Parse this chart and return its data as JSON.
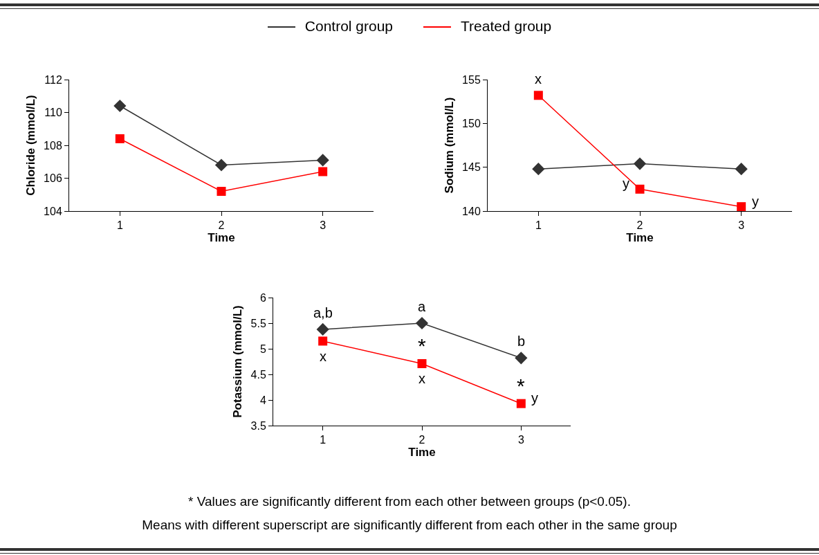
{
  "chart_data": [
    {
      "type": "line",
      "categories": [
        "1",
        "2",
        "3"
      ],
      "xlabel": "Time",
      "ylabel": "Chloride (mmol/L)",
      "ylim": [
        104,
        112
      ],
      "yticks": [
        104,
        106,
        108,
        110,
        112
      ],
      "grid": false,
      "legend": "top",
      "series": [
        {
          "name": "Control group",
          "color": "#333333",
          "marker": "diamond",
          "values": [
            110.4,
            106.8,
            107.1
          ]
        },
        {
          "name": "Treated group",
          "color": "#ff0000",
          "marker": "square",
          "values": [
            108.4,
            105.2,
            106.4
          ]
        }
      ]
    },
    {
      "type": "line",
      "categories": [
        "1",
        "2",
        "3"
      ],
      "xlabel": "Time",
      "ylabel": "Sodium (mmol/L)",
      "ylim": [
        140,
        155
      ],
      "yticks": [
        140,
        145,
        150,
        155
      ],
      "grid": false,
      "series": [
        {
          "color": "#333333",
          "marker": "diamond",
          "values": [
            144.8,
            145.4,
            144.8
          ]
        },
        {
          "color": "#ff0000",
          "marker": "square",
          "values": [
            153.2,
            142.5,
            140.5
          ]
        }
      ],
      "annotations": [
        {
          "text": "x",
          "x": "1",
          "y": 153.2
        },
        {
          "text": "y",
          "x": "2",
          "y": 142.5
        },
        {
          "text": "y",
          "x": "3",
          "y": 140.5
        }
      ]
    },
    {
      "type": "line",
      "categories": [
        "1",
        "2",
        "3"
      ],
      "xlabel": "Time",
      "ylabel": "Potassium (mmol/L)",
      "ylim": [
        3.5,
        6
      ],
      "yticks": [
        3.5,
        4,
        4.5,
        5,
        5.5,
        6
      ],
      "grid": false,
      "series": [
        {
          "color": "#333333",
          "marker": "diamond",
          "values": [
            5.38,
            5.5,
            4.82
          ]
        },
        {
          "color": "#ff0000",
          "marker": "square",
          "values": [
            5.15,
            4.71,
            3.93
          ]
        }
      ],
      "annotations": [
        {
          "text": "a,b",
          "x": "1",
          "y": 5.38
        },
        {
          "text": "a",
          "x": "2",
          "y": 5.5
        },
        {
          "text": "b",
          "x": "3",
          "y": 4.82
        },
        {
          "text": "x",
          "x": "1",
          "y": 5.15
        },
        {
          "text": "x",
          "x": "2",
          "y": 4.71
        },
        {
          "text": "*",
          "x": "2",
          "y": 4.71
        },
        {
          "text": "y",
          "x": "3",
          "y": 3.93
        },
        {
          "text": "*",
          "x": "3",
          "y": 3.93
        },
        "* Values are significantly different from each other between groups (p<0.05).",
        "Means with different superscript are significantly different from each other in the same group"
      ]
    }
  ]
}
